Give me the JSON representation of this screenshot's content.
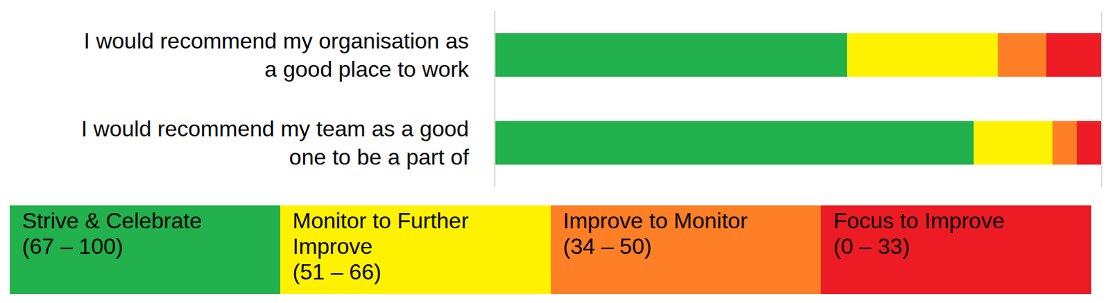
{
  "chart_data": {
    "type": "bar",
    "orientation": "horizontal",
    "stacked": true,
    "categories": [
      "I would recommend my organisation as\na good place to work",
      "I would recommend my team as a good\none to be a part of"
    ],
    "series": [
      {
        "name": "Strive & Celebrate\n(67 – 100)",
        "color": "#22b14c",
        "values": [
          58,
          79
        ]
      },
      {
        "name": "Monitor to Further\nImprove\n(51 – 66)",
        "color": "#fff200",
        "values": [
          25,
          13
        ]
      },
      {
        "name": "Improve to Monitor\n(34 – 50)",
        "color": "#ff7f27",
        "values": [
          8,
          4
        ]
      },
      {
        "name": "Focus to Improve\n(0 – 33)",
        "color": "#ed1c24",
        "values": [
          9,
          4
        ]
      }
    ],
    "xlim": [
      0,
      100
    ],
    "xticks": [],
    "tick_labels": "y",
    "grid": false,
    "data_labels": false,
    "legend": "bottom"
  }
}
